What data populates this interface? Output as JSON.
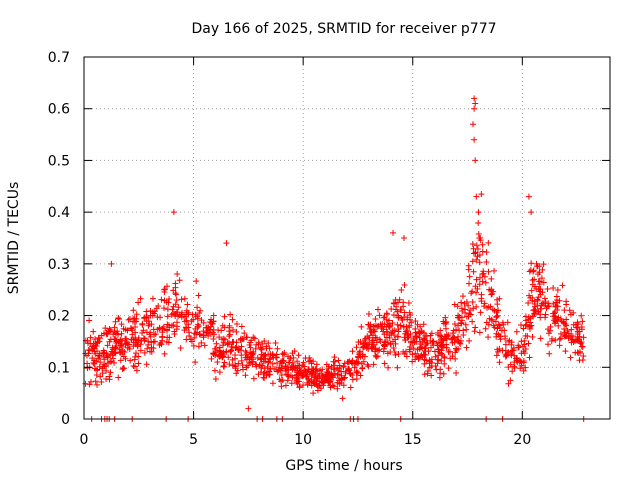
{
  "chart_data": {
    "type": "scatter",
    "title": "Day 166 of 2025, SRMTID for receiver p777",
    "xlabel": "GPS time / hours",
    "ylabel": "SRMTID / TECUs",
    "xlim": [
      0,
      24
    ],
    "ylim": [
      0,
      0.7
    ],
    "grid": true,
    "marker": "+",
    "color": "#ff0000",
    "xticks": [
      0,
      5,
      10,
      15,
      20
    ],
    "yticks": [
      0,
      0.1,
      0.2,
      0.3,
      0.4,
      0.5,
      0.6,
      0.7
    ],
    "xtick_labels": [
      "0",
      "5",
      "10",
      "15",
      "20"
    ],
    "ytick_labels": [
      "0",
      "0.1",
      "0.2",
      "0.3",
      "0.4",
      "0.5",
      "0.6",
      "0.7"
    ],
    "series": [
      {
        "name": "SRMTID",
        "profile_hours": [
          0,
          0.3,
          0.8,
          1.5,
          2.2,
          3.0,
          3.6,
          4.2,
          4.8,
          5.5,
          6.2,
          7.0,
          7.8,
          8.5,
          9.2,
          10.0,
          10.8,
          11.5,
          12.2,
          13.0,
          13.8,
          14.5,
          15.2,
          16.0,
          16.8,
          17.5,
          17.9,
          18.3,
          18.8,
          19.4,
          20.0,
          20.5,
          21.2,
          22.0,
          22.8
        ],
        "profile_mean_tecu": [
          0.14,
          0.12,
          0.12,
          0.14,
          0.15,
          0.17,
          0.18,
          0.22,
          0.18,
          0.17,
          0.14,
          0.14,
          0.12,
          0.11,
          0.1,
          0.09,
          0.08,
          0.085,
          0.09,
          0.15,
          0.16,
          0.19,
          0.14,
          0.13,
          0.15,
          0.2,
          0.3,
          0.27,
          0.2,
          0.12,
          0.12,
          0.25,
          0.22,
          0.18,
          0.15
        ],
        "profile_spread_tecu": [
          0.06,
          0.05,
          0.06,
          0.07,
          0.06,
          0.07,
          0.07,
          0.09,
          0.07,
          0.06,
          0.06,
          0.06,
          0.05,
          0.05,
          0.04,
          0.03,
          0.03,
          0.03,
          0.04,
          0.06,
          0.06,
          0.07,
          0.05,
          0.05,
          0.05,
          0.08,
          0.15,
          0.09,
          0.08,
          0.05,
          0.05,
          0.09,
          0.08,
          0.06,
          0.05
        ],
        "notable_points": [
          {
            "x": 17.8,
            "y": 0.62
          },
          {
            "x": 17.85,
            "y": 0.61
          },
          {
            "x": 17.8,
            "y": 0.6
          },
          {
            "x": 17.75,
            "y": 0.57
          },
          {
            "x": 17.8,
            "y": 0.54
          },
          {
            "x": 17.85,
            "y": 0.5
          },
          {
            "x": 17.9,
            "y": 0.43
          },
          {
            "x": 18.0,
            "y": 0.4
          },
          {
            "x": 4.1,
            "y": 0.4
          },
          {
            "x": 20.3,
            "y": 0.43
          },
          {
            "x": 20.4,
            "y": 0.4
          },
          {
            "x": 6.5,
            "y": 0.34
          },
          {
            "x": 14.1,
            "y": 0.36
          },
          {
            "x": 14.6,
            "y": 0.35
          },
          {
            "x": 1.25,
            "y": 0.3
          },
          {
            "x": 7.5,
            "y": 0.02
          },
          {
            "x": 11.8,
            "y": 0.04
          }
        ],
        "zero_points_x": [
          0.35,
          0.8,
          0.95,
          1.05,
          1.15,
          1.4,
          2.2,
          3.75,
          4.75,
          7.9,
          8.15,
          8.8,
          9.05,
          12.15,
          12.3,
          12.5,
          14.45,
          18.35,
          19.1,
          22.8
        ]
      }
    ]
  }
}
